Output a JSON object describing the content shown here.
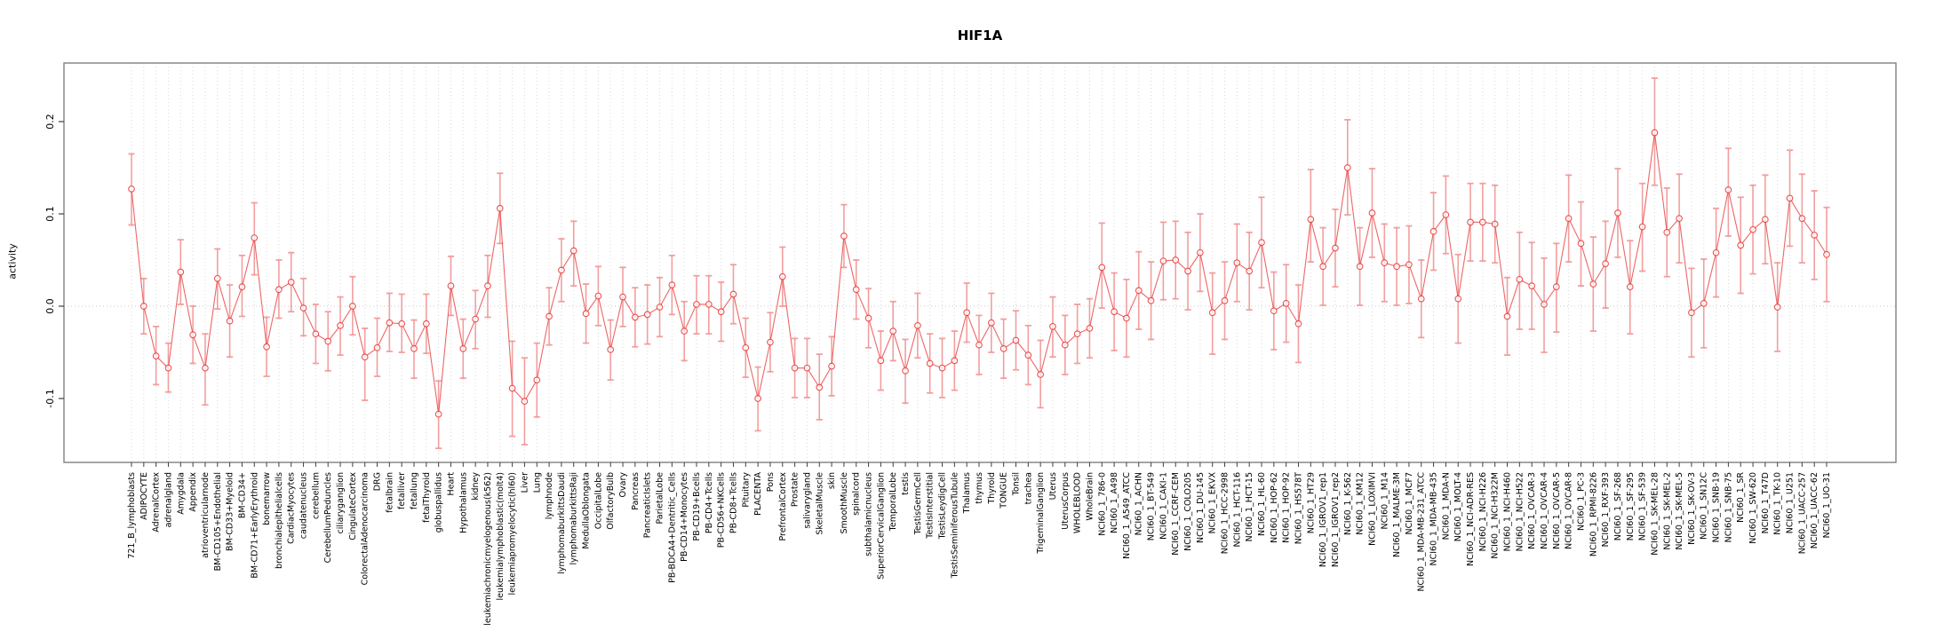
{
  "title": "HIF1A",
  "chart_data": {
    "type": "line",
    "title": "HIF1A",
    "xlabel": "",
    "ylabel": "activity",
    "legend": "none",
    "grid": "vertical dashed line per category; dotted horizontal line at 0",
    "ylim": [
      -0.169,
      0.263
    ],
    "yticks": [
      -0.1,
      0.0,
      0.1,
      0.2
    ],
    "ytick_labels": [
      "-0.1",
      "0.0",
      "0.1",
      "0.2"
    ],
    "point_marker": "open-circle",
    "series_color": "#e84040",
    "errorbar_color": "#f29090",
    "gridline_color": "#d9d9d9",
    "categories": [
      "721_B_lymphoblasts",
      "ADIPOCYTE",
      "AdrenalCortex",
      "adrenalgland",
      "Amygdala",
      "Appendix",
      "atrioventricularnode",
      "BM-CD105+Endothelial",
      "BM-CD33+Myeloid",
      "BM-CD34+",
      "BM-CD71+EarlyErythroid",
      "bonemarrow",
      "bronchialepithelialcells",
      "CardiacMyocytes",
      "caudatenucleus",
      "cerebellum",
      "CerebellumPeduncles",
      "ciliaryganglion",
      "CingulateCortex",
      "ColorectalAdenocarcinoma",
      "DRG",
      "fetalbrain",
      "fetalliver",
      "fetallung",
      "fetalThyroid",
      "globuspallidus",
      "Heart",
      "Hypothalamus",
      "kidney",
      "leukemiachronicmyelogenous(k562)",
      "leukemialymphoblastic(molt4)",
      "leukemiapromyelocytic(hl60)",
      "Liver",
      "Lung",
      "lymphnode",
      "lymphomaburkittsDaudi",
      "lymphomaburkittsRaji",
      "MedullaOblongata",
      "OccipitalLobe",
      "OlfactoryBulb",
      "Ovary",
      "Pancreas",
      "PancreaticIslets",
      "ParietalLobe",
      "PB-BDCA4+Dentritic_Cells",
      "PB-CD14+Monocytes",
      "PB-CD19+Bcells",
      "PB-CD4+Tcells",
      "PB-CD56+NKCells",
      "PB-CD8+Tcells",
      "Pituitary",
      "PLACENTA",
      "Pons",
      "PrefrontalCortex",
      "Prostate",
      "salivarygland",
      "SkeletalMuscle",
      "skin",
      "SmoothMuscle",
      "spinalcord",
      "subthalamicnucleus",
      "SuperiorCervicalGanglion",
      "TemporalLobe",
      "testis",
      "TestisGermCell",
      "TestisInterstitial",
      "TestisLeydigCell",
      "TestisSeminiferousTubule",
      "Thalamus",
      "thymus",
      "Thyroid",
      "TONGUE",
      "Tonsil",
      "trachea",
      "TrigeminalGanglion",
      "Uterus",
      "UterusCorpus",
      "WHOLEBLOOD",
      "WholeBrain",
      "NCI60_1_786-0",
      "NCI60_1_A498",
      "NCI60_1_A549_ATCC",
      "NCI60_1_ACHN",
      "NCI60_1_BT-549",
      "NCI60_1_CAKI-1",
      "NCI60_1_CCRF-CEM",
      "NCI60_1_COLO205",
      "NCI60_1_DU-145",
      "NCI60_1_EKVX",
      "NCI60_1_HCC-2998",
      "NCI60_1_HCT-116",
      "NCI60_1_HCT-15",
      "NCI60_1_HL-60",
      "NCI60_1_HOP-62",
      "NCI60_1_HOP-92",
      "NCI60_1_HS578T",
      "NCI60_1_HT29",
      "NCI60_1_IGROV1_rep1",
      "NCI60_1_IGROV1_rep2",
      "NCI60_1_K-562",
      "NCI60_1_KM12",
      "NCI60_1_LOXIMVI",
      "NCI60_1_M14",
      "NCI60_1_MALME-3M",
      "NCI60_1_MCF7",
      "NCI60_1_MDA-MB-231_ATCC",
      "NCI60_1_MDA-MB-435",
      "NCI60_1_MDA-N",
      "NCI60_1_MOLT-4",
      "NCI60_1_NCI-ADR-RES",
      "NCI60_1_NCI-H226",
      "NCI60_1_NCI-H322M",
      "NCI60_1_NCI-H460",
      "NCI60_1_NCI-H522",
      "NCI60_1_OVCAR-3",
      "NCI60_1_OVCAR-4",
      "NCI60_1_OVCAR-5",
      "NCI60_1_OVCAR-8",
      "NCI60_1_PC-3",
      "NCI60_1_RPMI-8226",
      "NCI60_1_RXF-393",
      "NCI60_1_SF-268",
      "NCI60_1_SF-295",
      "NCI60_1_SF-539",
      "NCI60_1_SK-MEL-28",
      "NCI60_1_SK-MEL-2",
      "NCI60_1_SK-MEL-5",
      "NCI60_1_SK-OV-3",
      "NCI60_1_SN12C",
      "NCI60_1_SNB-19",
      "NCI60_1_SNB-75",
      "NCI60_1_SR",
      "NCI60_1_SW-620",
      "NCI60_1_T47D",
      "NCI60_1_TK-10",
      "NCI60_1_U251",
      "NCI60_1_UACC-257",
      "NCI60_1_UACC-62",
      "NCI60_1_UO-31"
    ],
    "values": [
      0.127,
      0.0,
      -0.054,
      -0.067,
      0.037,
      -0.031,
      -0.067,
      0.03,
      -0.016,
      0.021,
      0.074,
      -0.044,
      0.018,
      0.026,
      -0.002,
      -0.03,
      -0.038,
      -0.021,
      0.0,
      -0.055,
      -0.045,
      -0.018,
      -0.019,
      -0.046,
      -0.019,
      -0.117,
      0.022,
      -0.046,
      -0.014,
      0.022,
      0.106,
      -0.089,
      -0.103,
      -0.08,
      -0.011,
      0.039,
      0.06,
      -0.008,
      0.011,
      -0.047,
      0.01,
      -0.012,
      -0.009,
      -0.001,
      0.023,
      -0.027,
      0.002,
      0.002,
      -0.006,
      0.013,
      -0.045,
      -0.1,
      -0.039,
      0.032,
      -0.067,
      -0.067,
      -0.088,
      -0.065,
      0.076,
      0.018,
      -0.013,
      -0.059,
      -0.027,
      -0.07,
      -0.021,
      -0.062,
      -0.067,
      -0.059,
      -0.007,
      -0.042,
      -0.018,
      -0.046,
      -0.037,
      -0.053,
      -0.074,
      -0.022,
      -0.042,
      -0.03,
      -0.024,
      0.042,
      -0.006,
      -0.013,
      0.017,
      0.006,
      0.049,
      0.05,
      0.038,
      0.058,
      -0.007,
      0.006,
      0.047,
      0.038,
      0.069,
      -0.005,
      0.003,
      -0.019,
      0.094,
      0.043,
      0.063,
      0.15,
      0.043,
      0.101,
      0.047,
      0.043,
      0.045,
      0.008,
      0.081,
      0.099,
      0.008,
      0.091,
      0.091,
      0.089,
      -0.011,
      0.029,
      0.022,
      0.002,
      0.021,
      0.095,
      0.068,
      0.024,
      0.046,
      0.101,
      0.021,
      0.086,
      0.188,
      0.08,
      0.095,
      -0.007,
      0.003,
      0.058,
      0.126,
      0.066,
      0.083,
      0.094,
      -0.001,
      0.117,
      0.095,
      0.077,
      0.056
    ],
    "error_low": [
      0.088,
      -0.03,
      -0.085,
      -0.093,
      0.002,
      -0.062,
      -0.107,
      -0.003,
      -0.055,
      -0.011,
      0.034,
      -0.076,
      -0.013,
      -0.006,
      -0.032,
      -0.062,
      -0.07,
      -0.053,
      -0.031,
      -0.102,
      -0.076,
      -0.049,
      -0.05,
      -0.078,
      -0.051,
      -0.154,
      -0.01,
      -0.078,
      -0.046,
      -0.012,
      0.068,
      -0.141,
      -0.15,
      -0.12,
      -0.042,
      0.005,
      0.022,
      -0.04,
      -0.021,
      -0.08,
      -0.022,
      -0.044,
      -0.041,
      -0.033,
      -0.009,
      -0.059,
      -0.03,
      -0.03,
      -0.038,
      -0.019,
      -0.077,
      -0.135,
      -0.071,
      0.0,
      -0.099,
      -0.099,
      -0.123,
      -0.097,
      0.042,
      -0.014,
      -0.045,
      -0.091,
      -0.059,
      -0.105,
      -0.056,
      -0.094,
      -0.099,
      -0.091,
      -0.039,
      -0.074,
      -0.05,
      -0.078,
      -0.069,
      -0.085,
      -0.11,
      -0.055,
      -0.074,
      -0.062,
      -0.056,
      -0.002,
      -0.048,
      -0.055,
      -0.025,
      -0.036,
      0.007,
      0.008,
      -0.004,
      0.016,
      -0.052,
      -0.036,
      0.005,
      -0.004,
      0.02,
      -0.047,
      -0.039,
      -0.061,
      0.048,
      0.001,
      0.021,
      0.099,
      0.001,
      0.053,
      0.005,
      0.001,
      0.003,
      -0.034,
      0.039,
      0.057,
      -0.04,
      0.049,
      0.049,
      0.047,
      -0.053,
      -0.025,
      -0.025,
      -0.05,
      -0.028,
      0.048,
      0.022,
      -0.027,
      -0.002,
      0.053,
      -0.03,
      0.038,
      0.131,
      0.032,
      0.047,
      -0.055,
      -0.045,
      0.01,
      0.076,
      0.014,
      0.035,
      0.046,
      -0.049,
      0.065,
      0.047,
      0.029,
      0.005
    ],
    "error_high": [
      0.165,
      0.03,
      -0.022,
      -0.04,
      0.072,
      0.0,
      -0.03,
      0.062,
      0.023,
      0.055,
      0.112,
      -0.012,
      0.05,
      0.058,
      0.03,
      0.002,
      -0.006,
      0.01,
      0.032,
      -0.024,
      -0.013,
      0.014,
      0.013,
      -0.015,
      0.013,
      -0.081,
      0.054,
      -0.014,
      0.017,
      0.055,
      0.144,
      -0.038,
      -0.056,
      -0.04,
      0.02,
      0.073,
      0.092,
      0.024,
      0.043,
      -0.015,
      0.042,
      0.02,
      0.023,
      0.031,
      0.055,
      0.005,
      0.033,
      0.033,
      0.026,
      0.045,
      -0.013,
      -0.066,
      -0.007,
      0.064,
      -0.035,
      -0.035,
      -0.052,
      -0.033,
      0.11,
      0.05,
      0.019,
      -0.027,
      0.005,
      -0.036,
      0.014,
      -0.03,
      -0.035,
      -0.027,
      0.025,
      -0.01,
      0.014,
      -0.014,
      -0.005,
      -0.021,
      -0.037,
      0.01,
      -0.01,
      0.002,
      0.008,
      0.09,
      0.036,
      0.029,
      0.059,
      0.048,
      0.091,
      0.092,
      0.08,
      0.1,
      0.036,
      0.048,
      0.089,
      0.08,
      0.118,
      0.037,
      0.045,
      0.023,
      0.148,
      0.085,
      0.105,
      0.202,
      0.085,
      0.149,
      0.089,
      0.085,
      0.087,
      0.05,
      0.123,
      0.141,
      0.056,
      0.133,
      0.133,
      0.131,
      0.031,
      0.08,
      0.069,
      0.052,
      0.068,
      0.142,
      0.113,
      0.075,
      0.092,
      0.149,
      0.071,
      0.133,
      0.247,
      0.128,
      0.143,
      0.041,
      0.051,
      0.106,
      0.171,
      0.118,
      0.131,
      0.142,
      0.047,
      0.169,
      0.143,
      0.125,
      0.107
    ]
  }
}
